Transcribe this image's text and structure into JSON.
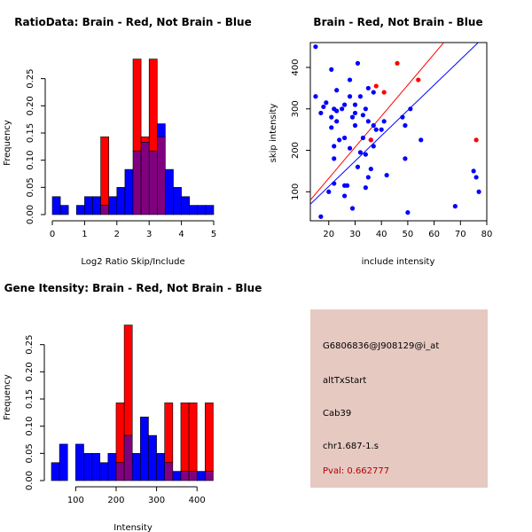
{
  "colors": {
    "brain": "#ff0000",
    "not_brain": "#0000ff",
    "overlap": "#800080",
    "panel_bg": "#e6c9c1",
    "pval_text": "#b30000"
  },
  "info": {
    "probe_id": "G6806836@J908129@i_at",
    "event_type": "altTxStart",
    "gene": "Cab39",
    "location": "chr1.687-1.s",
    "pval": "Pval: 0.662777"
  },
  "chart_data": [
    {
      "id": "ratio",
      "type": "histogram",
      "title": "RatioData: Brain - Red, Not Brain - Blue",
      "xlabel": "Log2 Ratio Skip/Include",
      "ylabel": "Frequency",
      "xlim": [
        0,
        5
      ],
      "ylim": [
        0,
        0.3
      ],
      "xticks": [
        "0",
        "1",
        "2",
        "3",
        "4",
        "5"
      ],
      "yticks": [
        "0.00",
        "0.05",
        "0.10",
        "0.15",
        "0.20",
        "0.25"
      ],
      "bin_start": 0,
      "bin_width": 0.25,
      "series": [
        {
          "name": "Not Brain",
          "color": "blue",
          "values": [
            0.033,
            0.017,
            0,
            0.017,
            0.033,
            0.033,
            0.017,
            0.033,
            0.05,
            0.083,
            0.117,
            0.133,
            0.117,
            0.167,
            0.083,
            0.05,
            0.033,
            0.017,
            0.017,
            0.017
          ]
        },
        {
          "name": "Brain",
          "color": "red",
          "values": [
            0,
            0,
            0,
            0,
            0,
            0,
            0.143,
            0,
            0,
            0,
            0.286,
            0.143,
            0.286,
            0.143,
            0,
            0,
            0,
            0,
            0,
            0
          ]
        }
      ]
    },
    {
      "id": "scatter",
      "type": "scatter",
      "title": "Brain - Red, Not Brain - Blue",
      "xlabel": "include intensity",
      "ylabel": "skip intensity",
      "xlim": [
        13,
        80
      ],
      "ylim": [
        30,
        460
      ],
      "xticks": [
        "20",
        "30",
        "40",
        "50",
        "60",
        "70",
        "80"
      ],
      "yticks": [
        "100",
        "200",
        "300",
        "400"
      ],
      "series": [
        {
          "name": "Not Brain",
          "color": "blue",
          "points": [
            [
              15,
              450
            ],
            [
              15,
              330
            ],
            [
              17,
              290
            ],
            [
              18,
              305
            ],
            [
              19,
              315
            ],
            [
              20,
              100
            ],
            [
              21,
              395
            ],
            [
              21,
              255
            ],
            [
              21,
              280
            ],
            [
              22,
              210
            ],
            [
              22,
              180
            ],
            [
              22,
              300
            ],
            [
              23,
              295
            ],
            [
              23,
              345
            ],
            [
              23,
              270
            ],
            [
              24,
              225
            ],
            [
              25,
              300
            ],
            [
              26,
              310
            ],
            [
              26,
              230
            ],
            [
              27,
              115
            ],
            [
              28,
              205
            ],
            [
              28,
              330
            ],
            [
              28,
              370
            ],
            [
              29,
              280
            ],
            [
              30,
              260
            ],
            [
              30,
              290
            ],
            [
              30,
              310
            ],
            [
              31,
              410
            ],
            [
              31,
              160
            ],
            [
              32,
              195
            ],
            [
              32,
              330
            ],
            [
              33,
              230
            ],
            [
              33,
              285
            ],
            [
              34,
              300
            ],
            [
              34,
              190
            ],
            [
              35,
              270
            ],
            [
              35,
              350
            ],
            [
              36,
              225
            ],
            [
              36,
              155
            ],
            [
              37,
              260
            ],
            [
              37,
              340
            ],
            [
              37,
              210
            ],
            [
              38,
              250
            ],
            [
              40,
              250
            ],
            [
              41,
              270
            ],
            [
              42,
              140
            ],
            [
              48,
              280
            ],
            [
              49,
              180
            ],
            [
              49,
              260
            ],
            [
              50,
              50
            ],
            [
              51,
              300
            ],
            [
              55,
              225
            ],
            [
              68,
              65
            ],
            [
              75,
              150
            ],
            [
              76,
              135
            ],
            [
              77,
              100
            ],
            [
              35,
              135
            ],
            [
              26,
              90
            ],
            [
              34,
              110
            ],
            [
              26,
              115
            ],
            [
              29,
              60
            ],
            [
              17,
              40
            ],
            [
              22,
              120
            ]
          ]
        },
        {
          "name": "Brain",
          "color": "red",
          "points": [
            [
              38,
              355
            ],
            [
              41,
              340
            ],
            [
              46,
              410
            ],
            [
              54,
              370
            ],
            [
              76,
              225
            ],
            [
              36,
              225
            ]
          ]
        }
      ],
      "lines": [
        {
          "name": "Brain fit",
          "color": "red",
          "from": [
            13,
            80
          ],
          "to": [
            65,
            470
          ]
        },
        {
          "name": "Not Brain fit",
          "color": "blue",
          "from": [
            13,
            70
          ],
          "to": [
            80,
            480
          ]
        }
      ]
    },
    {
      "id": "intensity",
      "type": "histogram",
      "title": "Gene Itensity: Brain - Red, Not Brain - Blue",
      "xlabel": "Intensity",
      "ylabel": "Frequency",
      "xlim": [
        40,
        450
      ],
      "ylim": [
        0,
        0.3
      ],
      "xticks": [
        "100",
        "200",
        "300",
        "400"
      ],
      "yticks": [
        "0.00",
        "0.05",
        "0.10",
        "0.15",
        "0.20",
        "0.25"
      ],
      "bin_start": 40,
      "bin_width": 20,
      "series": [
        {
          "name": "Not Brain",
          "color": "blue",
          "values": [
            0.033,
            0.067,
            0,
            0.067,
            0.05,
            0.05,
            0.033,
            0.05,
            0.033,
            0.083,
            0.05,
            0.117,
            0.083,
            0.05,
            0.033,
            0.017,
            0.017,
            0.017,
            0.017,
            0.017
          ]
        },
        {
          "name": "Brain",
          "color": "red",
          "values": [
            0,
            0,
            0,
            0,
            0,
            0,
            0,
            0,
            0.143,
            0.286,
            0,
            0,
            0,
            0,
            0.143,
            0,
            0.143,
            0.143,
            0,
            0.143
          ]
        }
      ]
    }
  ]
}
